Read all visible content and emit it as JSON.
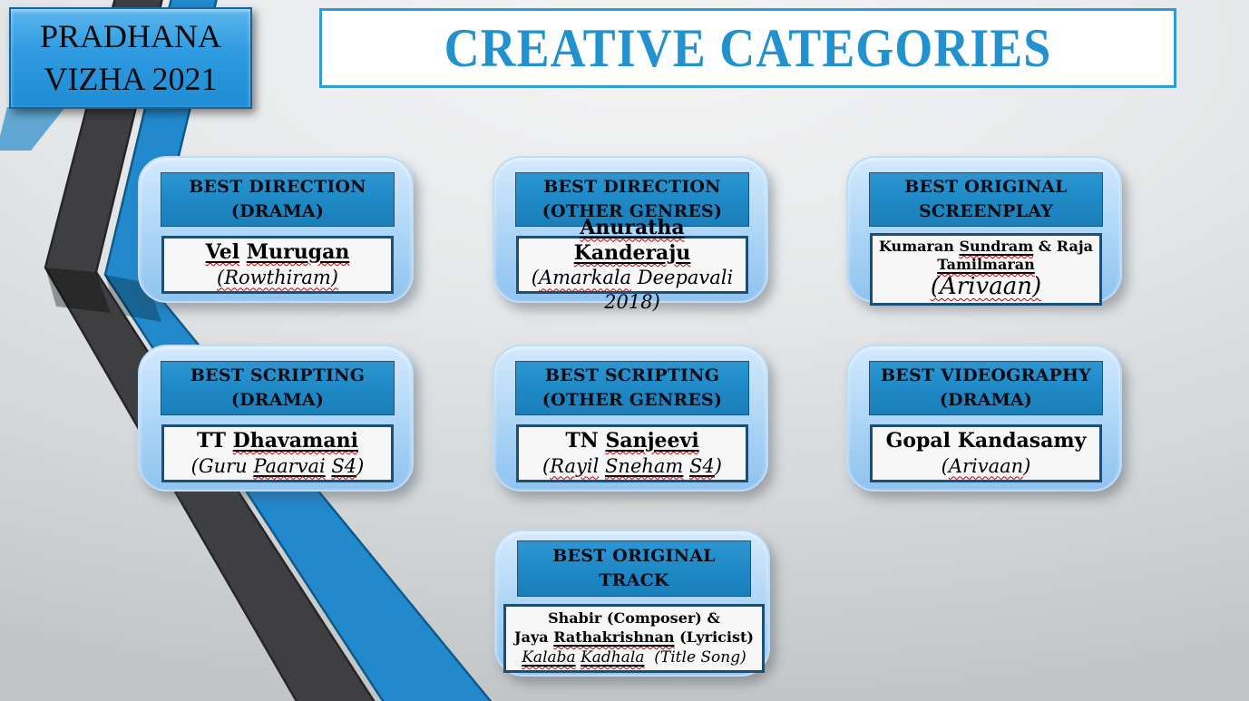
{
  "slide": {
    "badge_line1": "PRADHANA",
    "badge_line2": "VIZHA 2021",
    "title": "CREATIVE CATEGORIES"
  },
  "colors": {
    "accent_blue": "#1e88c4",
    "title_blue": "#2291cf",
    "ribbon_blue": "#2289cd",
    "ribbon_gray": "#3f3f41",
    "winner_border": "#1d4e74",
    "winner_bg": "#f7f7f7",
    "spellcheck_red": "#c00000",
    "header_text": "#0b0b14"
  },
  "cards": [
    {
      "header_line1": "BEST DIRECTION",
      "header_line2": "(DRAMA)",
      "lines": [
        {
          "style": "name",
          "segments": [
            {
              "t": "Vel",
              "d": "uw"
            },
            {
              "t": " "
            },
            {
              "t": "Murugan",
              "d": "uw"
            }
          ]
        },
        {
          "style": "show",
          "segments": [
            {
              "t": "(Rowthiram)",
              "d": "w"
            }
          ]
        }
      ]
    },
    {
      "header_line1": "BEST DIRECTION",
      "header_line2": "(OTHER GENRES)",
      "lines": [
        {
          "style": "name",
          "segments": [
            {
              "t": "Anuratha",
              "d": "uw"
            },
            {
              "t": " "
            },
            {
              "t": "Kanderaju",
              "d": "uw"
            }
          ]
        },
        {
          "style": "show",
          "segments": [
            {
              "t": "("
            },
            {
              "t": "Amarkala",
              "d": "w"
            },
            {
              "t": " Deepavali 2018)"
            }
          ]
        }
      ]
    },
    {
      "header_line1": "BEST ORIGINAL",
      "header_line2": "SCREENPLAY",
      "lines": [
        {
          "style": "name-sm",
          "segments": [
            {
              "t": "Kumaran "
            },
            {
              "t": "Sundram",
              "d": "uw"
            },
            {
              "t": " & Raja"
            }
          ]
        },
        {
          "style": "name-sm",
          "segments": [
            {
              "t": "Tamilmaran",
              "d": "uw"
            }
          ]
        },
        {
          "style": "show-lg",
          "segments": [
            {
              "t": "(Arivaan)",
              "d": "w"
            }
          ]
        }
      ]
    },
    {
      "header_line1": "BEST SCRIPTING",
      "header_line2": "(DRAMA)",
      "lines": [
        {
          "style": "name",
          "segments": [
            {
              "t": "TT "
            },
            {
              "t": "Dhavamani",
              "d": "uw"
            }
          ]
        },
        {
          "style": "show",
          "segments": [
            {
              "t": "(Guru "
            },
            {
              "t": "Paarvai",
              "d": "uw"
            },
            {
              "t": " "
            },
            {
              "t": "S4",
              "d": "uw"
            },
            {
              "t": ")"
            }
          ]
        }
      ]
    },
    {
      "header_line1": "BEST SCRIPTING",
      "header_line2": "(OTHER GENRES)",
      "lines": [
        {
          "style": "name",
          "segments": [
            {
              "t": "TN "
            },
            {
              "t": "Sanjeevi",
              "d": "uw"
            }
          ]
        },
        {
          "style": "show",
          "segments": [
            {
              "t": "("
            },
            {
              "t": "Rayil",
              "d": "w"
            },
            {
              "t": " "
            },
            {
              "t": "Sneham",
              "d": "uw"
            },
            {
              "t": " "
            },
            {
              "t": "S4",
              "d": "uw"
            },
            {
              "t": ")"
            }
          ]
        }
      ]
    },
    {
      "header_line1": "BEST VIDEOGRAPHY",
      "header_line2": "(DRAMA)",
      "lines": [
        {
          "style": "name",
          "segments": [
            {
              "t": "Gopal Kandasamy"
            }
          ]
        },
        {
          "style": "show",
          "segments": [
            {
              "t": "("
            },
            {
              "t": "Arivaan",
              "d": "w"
            },
            {
              "t": ")"
            }
          ]
        }
      ]
    },
    {
      "header_line1": "BEST ORIGINAL",
      "header_line2": "TRACK",
      "lines": [
        {
          "style": "name-sm",
          "segments": [
            {
              "t": "Shabir (Composer) &"
            }
          ]
        },
        {
          "style": "name-sm",
          "segments": [
            {
              "t": "Jaya "
            },
            {
              "t": "Rathakrishnan",
              "d": "uw"
            },
            {
              "t": " (Lyricist)"
            }
          ]
        },
        {
          "style": "show-sm",
          "segments": [
            {
              "t": "Kalaba",
              "d": "uw"
            },
            {
              "t": " "
            },
            {
              "t": "Kadhala",
              "d": "uw"
            },
            {
              "t": "  (Title Song)"
            }
          ]
        }
      ]
    }
  ]
}
